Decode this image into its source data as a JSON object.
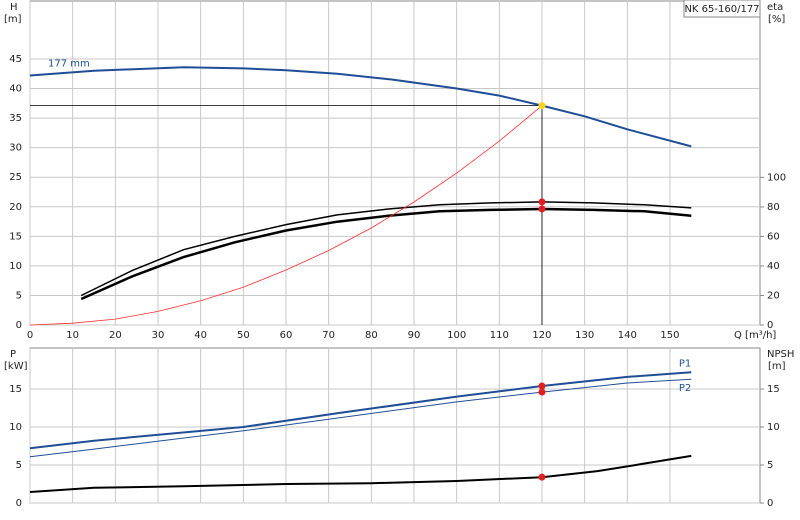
{
  "chart_data": [
    {
      "type": "line",
      "title": "NK 65-160/177",
      "ylabel": "H",
      "yunit": "[m]",
      "y2label": "eta",
      "y2unit": "[%]",
      "xlabel": "Q [m³/h]",
      "xlim": [
        0,
        171.1
      ],
      "xticks": [
        0,
        10,
        20,
        30,
        40,
        50,
        60,
        70,
        80,
        90,
        100,
        110,
        120,
        130,
        140,
        150
      ],
      "ylim": [
        0,
        54.8
      ],
      "yticks": [
        0,
        5,
        10,
        15,
        20,
        25,
        30,
        35,
        40,
        45
      ],
      "y2lim": [
        0,
        219.5
      ],
      "y2ticks": [
        0,
        20,
        40,
        60,
        80,
        100
      ],
      "grid": true,
      "xtick_labels": true,
      "guide_lines": true,
      "series": [
        {
          "name": "177 mm",
          "label_at": "start",
          "axis": "y",
          "color": "#1f4e96",
          "width": 2,
          "x": [
            0,
            15,
            36,
            50,
            60,
            72,
            85,
            100,
            110,
            120,
            130,
            140,
            155
          ],
          "values": [
            42.2,
            43,
            43.6,
            43.4,
            43.1,
            42.5,
            41.5,
            40,
            38.8,
            37.1,
            35.3,
            33.1,
            30.2
          ]
        },
        {
          "axis": "y2",
          "color": "#000000",
          "width": 1.5,
          "x": [
            12,
            24,
            36,
            48,
            60,
            72,
            84,
            96,
            108,
            120,
            132,
            144,
            155
          ],
          "values": [
            20,
            37,
            51,
            60,
            68,
            74.6,
            78.6,
            81.4,
            82.7,
            83.4,
            82.7,
            81.4,
            79.3
          ]
        },
        {
          "axis": "y2",
          "color": "#000000",
          "width": 2.5,
          "x": [
            12,
            24,
            36,
            48,
            60,
            72,
            84,
            96,
            108,
            120,
            132,
            144,
            155
          ],
          "values": [
            17.6,
            33,
            46,
            56,
            64,
            70,
            74,
            77,
            78,
            78.6,
            78,
            77,
            74
          ]
        },
        {
          "axis": "y",
          "color": "#ff3030",
          "width": 0.8,
          "x": [
            0,
            10,
            20,
            30,
            40,
            50,
            60,
            70,
            80,
            90,
            100,
            110,
            120
          ],
          "values": [
            0,
            0.3,
            1,
            2.3,
            4.1,
            6.4,
            9.3,
            12.6,
            16.4,
            20.8,
            25.7,
            31.1,
            37.1
          ]
        }
      ],
      "points": [
        {
          "x": 120,
          "y": 37.1,
          "axis": "y",
          "color": "#ffd21f"
        },
        {
          "x": 120,
          "y": 83.4,
          "axis": "y2",
          "color": "#e02020"
        },
        {
          "x": 120,
          "y": 78.6,
          "axis": "y2",
          "color": "#e02020"
        }
      ]
    },
    {
      "type": "line",
      "ylabel": "P",
      "yunit": "[kW]",
      "y2label": "NPSH",
      "y2unit": "[m]",
      "xlim": [
        0,
        171.1
      ],
      "xticks": [
        0,
        10,
        20,
        30,
        40,
        50,
        60,
        70,
        80,
        90,
        100,
        110,
        120,
        130,
        140,
        150
      ],
      "ylim": [
        0,
        20.4
      ],
      "yticks": [
        0,
        5,
        10,
        15
      ],
      "y2lim": [
        0,
        20.4
      ],
      "y2ticks": [
        0,
        5,
        10,
        15
      ],
      "grid": true,
      "xtick_labels": false,
      "guide_lines": false,
      "series": [
        {
          "name": "P1",
          "label_at": "end-above",
          "axis": "y",
          "color": "#1f4e96",
          "width": 2,
          "x": [
            0,
            15,
            50,
            72,
            100,
            120,
            140,
            155
          ],
          "values": [
            7.2,
            8.2,
            10,
            11.8,
            14,
            15.4,
            16.6,
            17.2
          ]
        },
        {
          "name": "P2",
          "label_at": "end-below",
          "axis": "y",
          "color": "#1f4e96",
          "width": 1,
          "x": [
            0,
            15,
            50,
            100,
            120,
            140,
            155
          ],
          "values": [
            6.1,
            7.1,
            9.5,
            13.3,
            14.6,
            15.8,
            16.3
          ]
        },
        {
          "axis": "y2",
          "color": "#000000",
          "width": 2,
          "x": [
            0,
            15,
            36,
            60,
            80,
            100,
            120,
            133,
            143,
            155
          ],
          "values": [
            1.45,
            2,
            2.2,
            2.5,
            2.6,
            2.9,
            3.4,
            4.2,
            5.1,
            6.2
          ]
        }
      ],
      "points": [
        {
          "x": 120,
          "y": 15.4,
          "axis": "y",
          "color": "#e02020"
        },
        {
          "x": 120,
          "y": 14.6,
          "axis": "y",
          "color": "#e02020"
        },
        {
          "x": 120,
          "y": 3.4,
          "axis": "y2",
          "color": "#e02020"
        }
      ]
    }
  ]
}
